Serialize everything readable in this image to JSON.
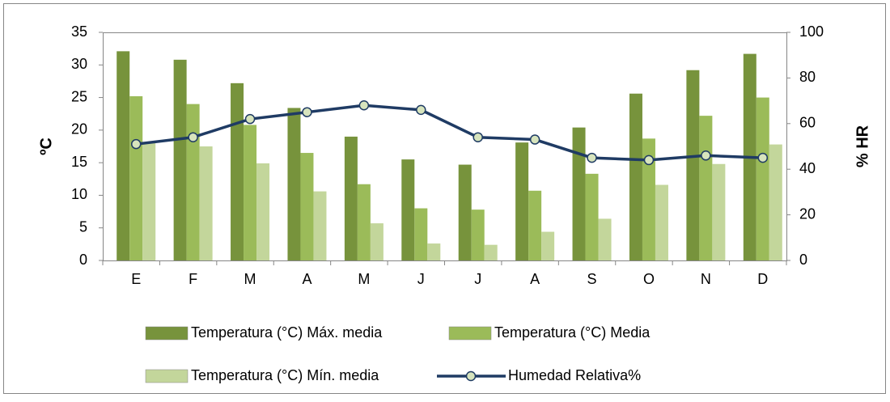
{
  "chart_data": {
    "type": "bar",
    "categories": [
      "E",
      "F",
      "M",
      "A",
      "M",
      "J",
      "J",
      "A",
      "S",
      "O",
      "N",
      "D"
    ],
    "series": [
      {
        "name": "Temperatura  (°C) Máx. media",
        "color": "#77933c",
        "values": [
          32.1,
          30.8,
          27.2,
          23.4,
          19.0,
          15.5,
          14.7,
          18.1,
          20.4,
          25.6,
          29.2,
          31.7
        ]
      },
      {
        "name": "Temperatura  (°C) Media",
        "color": "#9bbb59",
        "values": [
          25.2,
          24.0,
          20.8,
          16.5,
          11.7,
          8.0,
          7.8,
          10.7,
          13.3,
          18.7,
          22.2,
          25.0
        ]
      },
      {
        "name": "Temperatura  (°C) Mín. media",
        "color": "#c3d69b",
        "values": [
          18.2,
          17.5,
          14.9,
          10.6,
          5.7,
          2.6,
          2.4,
          4.4,
          6.4,
          11.6,
          14.8,
          17.8
        ]
      },
      {
        "name": "Humedad Relativa%",
        "type": "line",
        "axis": "y2",
        "color": "#1f3b64",
        "marker_color": "#d7e4bd",
        "values": [
          51,
          54,
          62,
          65,
          68,
          66,
          54,
          53,
          45,
          44,
          46,
          45
        ]
      }
    ],
    "ylabel": "ºC",
    "y2label": "% HR",
    "ylim": [
      0,
      35
    ],
    "yticks": [
      0,
      5,
      10,
      15,
      20,
      25,
      30,
      35
    ],
    "y2lim": [
      0,
      100
    ],
    "y2ticks": [
      0,
      20,
      40,
      60,
      80,
      100
    ],
    "grid": false,
    "legend": "bottom"
  }
}
